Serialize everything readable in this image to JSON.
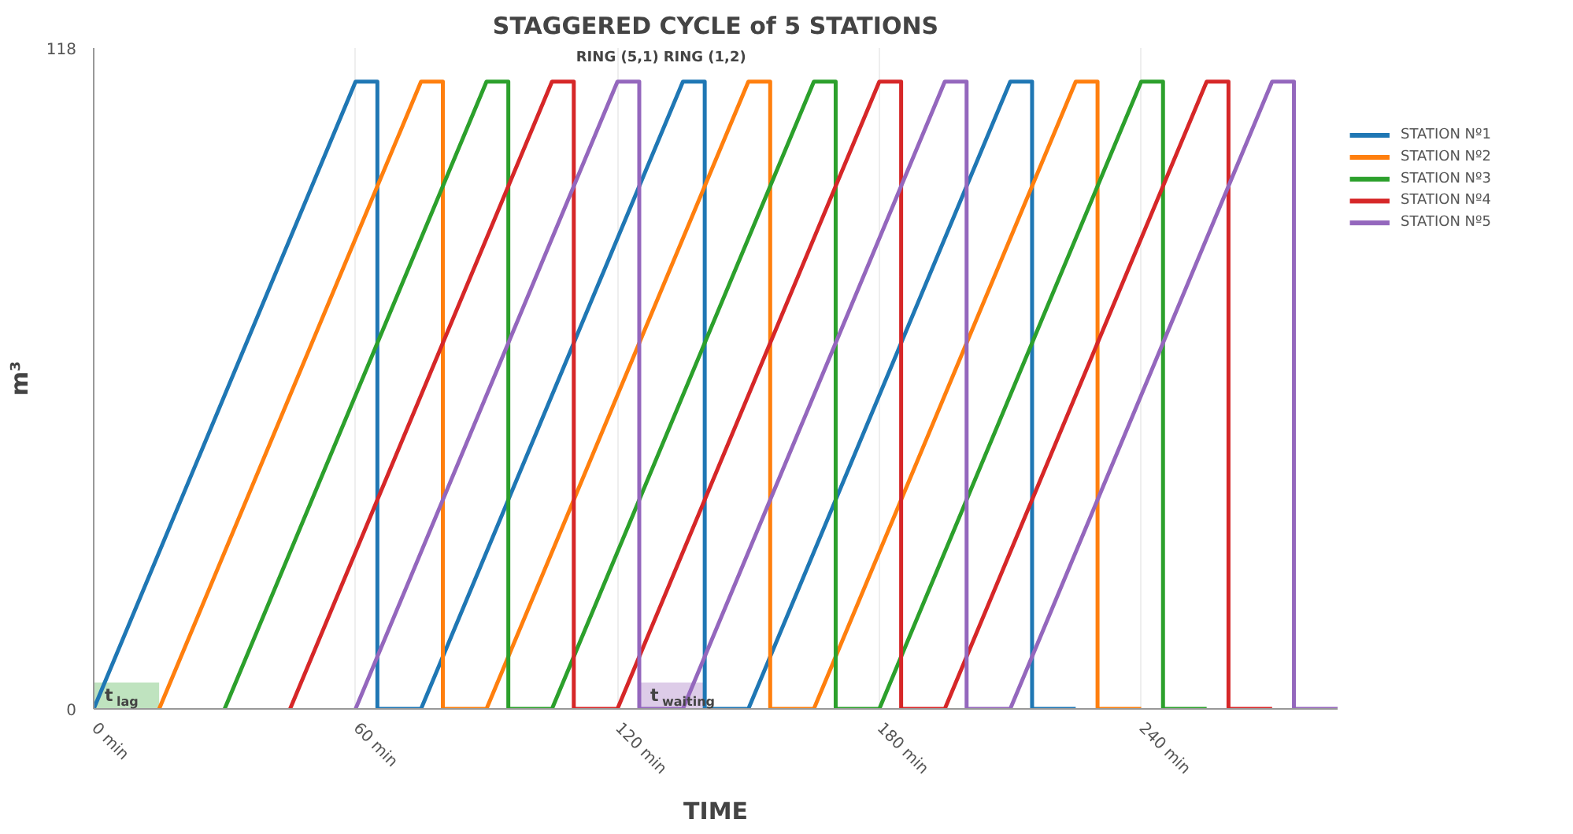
{
  "chart_data": {
    "type": "line",
    "title": "STAGGERED CYCLE of 5 STATIONS",
    "xlabel": "TIME",
    "ylabel": "m³",
    "xlim": [
      0,
      285
    ],
    "xticks": [
      {
        "value": 0,
        "label": "0 min"
      },
      {
        "value": 60,
        "label": "60 min"
      },
      {
        "value": 120,
        "label": "120 min"
      },
      {
        "value": 180,
        "label": "180 min"
      },
      {
        "value": 240,
        "label": "240 min"
      }
    ],
    "ylim": [
      0,
      118
    ],
    "yticks": [
      0,
      118
    ],
    "grid": "x",
    "legend": "top right",
    "line_style": "solid",
    "marker": "none",
    "series": [
      {
        "name": "STATION Nº1",
        "color": "#1f77b4",
        "x": [
          0,
          60,
          65,
          65,
          75,
          135,
          140,
          140,
          150,
          210,
          215,
          215,
          225
        ],
        "values": [
          0,
          112,
          112,
          0,
          0,
          112,
          112,
          0,
          0,
          112,
          112,
          0,
          0
        ]
      },
      {
        "name": "STATION Nº2",
        "color": "#ff7f0e",
        "x": [
          15,
          75,
          80,
          80,
          90,
          150,
          155,
          155,
          165,
          225,
          230,
          230,
          240
        ],
        "values": [
          0,
          112,
          112,
          0,
          0,
          112,
          112,
          0,
          0,
          112,
          112,
          0,
          0
        ]
      },
      {
        "name": "STATION Nº3",
        "color": "#2ca02c",
        "x": [
          30,
          90,
          95,
          95,
          105,
          165,
          170,
          170,
          180,
          240,
          245,
          245,
          255
        ],
        "values": [
          0,
          112,
          112,
          0,
          0,
          112,
          112,
          0,
          0,
          112,
          112,
          0,
          0
        ]
      },
      {
        "name": "STATION Nº4",
        "color": "#d62728",
        "x": [
          45,
          105,
          110,
          110,
          120,
          180,
          185,
          185,
          195,
          255,
          260,
          260,
          270
        ],
        "values": [
          0,
          112,
          112,
          0,
          0,
          112,
          112,
          0,
          0,
          112,
          112,
          0,
          0
        ]
      },
      {
        "name": "STATION Nº5",
        "color": "#9467bd",
        "x": [
          60,
          120,
          125,
          125,
          135,
          195,
          200,
          200,
          210,
          270,
          275,
          275,
          285
        ],
        "values": [
          0,
          112,
          112,
          0,
          0,
          112,
          112,
          0,
          0,
          112,
          112,
          0,
          0
        ]
      }
    ],
    "bands": [
      {
        "axis": "x",
        "from": 0,
        "to": 15,
        "label": "t$_{lag}$",
        "color": "#b8e0b8"
      },
      {
        "axis": "x",
        "from": 125,
        "to": 140,
        "label": "t$_{waiting}$",
        "color": "#d9c6e6"
      }
    ],
    "annotations": [
      {
        "text": "RING (5,1)",
        "x": 120,
        "y": 112
      },
      {
        "text": "RING (1,2)",
        "x": 140,
        "y": 112
      }
    ]
  }
}
